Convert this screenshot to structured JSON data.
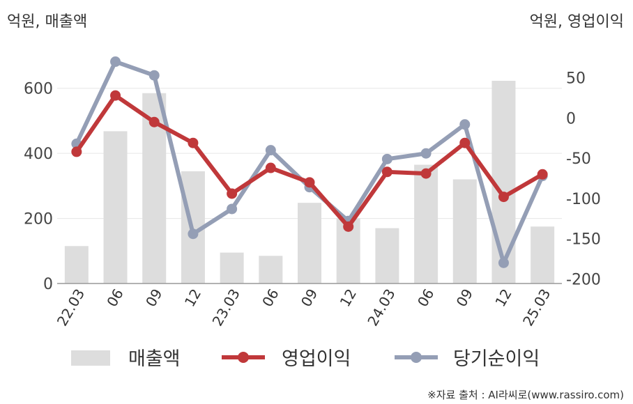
{
  "chart_data": {
    "type": "bar+line",
    "left_axis_label": "억원, 매출액",
    "right_axis_label": "억원, 영업이익",
    "categories": [
      "22.03",
      "06",
      "09",
      "12",
      "23.03",
      "06",
      "09",
      "12",
      "24.03",
      "06",
      "09",
      "12",
      "25.03"
    ],
    "left_axis": {
      "ylim": [
        0,
        700
      ],
      "ticks": [
        0,
        200,
        400,
        600
      ]
    },
    "right_axis": {
      "ylim": [
        -210,
        80
      ],
      "ticks": [
        -200,
        -150,
        -100,
        -50,
        0,
        50
      ]
    },
    "series": [
      {
        "name": "매출액",
        "type": "bar",
        "axis": "left",
        "color": "#dddddd",
        "values": [
          115,
          468,
          585,
          345,
          95,
          85,
          248,
          200,
          170,
          365,
          320,
          623,
          175
        ]
      },
      {
        "name": "영업이익",
        "type": "line",
        "axis": "right",
        "color": "#c0383a",
        "values": [
          -42,
          28,
          -5,
          -31,
          -94,
          -62,
          -80,
          -135,
          -67,
          -69,
          -31,
          -98,
          -70
        ]
      },
      {
        "name": "당기순이익",
        "type": "line",
        "axis": "right",
        "color": "#949eb5",
        "values": [
          -32,
          70,
          53,
          -144,
          -113,
          -40,
          -86,
          -128,
          -51,
          -44,
          -8,
          -180,
          -72
        ]
      }
    ],
    "grid": true
  },
  "source_text": "※자료 출처 : AI라씨로(www.rassiro.com)"
}
